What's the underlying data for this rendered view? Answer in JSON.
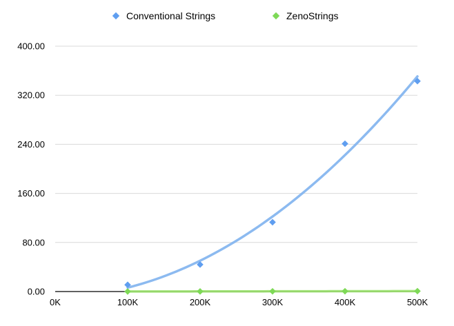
{
  "chart_data": {
    "type": "scatter",
    "title": "",
    "xlabel": "",
    "ylabel": "",
    "x_ticks": [
      "0K",
      "100K",
      "200K",
      "300K",
      "400K",
      "500K"
    ],
    "y_ticks": [
      "0.00",
      "80.00",
      "160.00",
      "240.00",
      "320.00",
      "400.00"
    ],
    "xlim": [
      0,
      500000
    ],
    "ylim": [
      0,
      400
    ],
    "grid": true,
    "legend_position": "top",
    "trendlines": "polynomial",
    "series": [
      {
        "name": "Conventional Strings",
        "color": "#5f9ef0",
        "trend_color": "#7fb3ee",
        "marker": "diamond",
        "points": [
          {
            "x": 100000,
            "y": 11
          },
          {
            "x": 200000,
            "y": 44
          },
          {
            "x": 300000,
            "y": 113
          },
          {
            "x": 400000,
            "y": 241
          },
          {
            "x": 500000,
            "y": 343
          }
        ]
      },
      {
        "name": "ZenoStrings",
        "color": "#7ed957",
        "trend_color": "#9be36e",
        "marker": "diamond",
        "points": [
          {
            "x": 100000,
            "y": 0.1
          },
          {
            "x": 200000,
            "y": 0.2
          },
          {
            "x": 300000,
            "y": 0.4
          },
          {
            "x": 400000,
            "y": 0.5
          },
          {
            "x": 500000,
            "y": 0.7
          }
        ]
      }
    ]
  }
}
